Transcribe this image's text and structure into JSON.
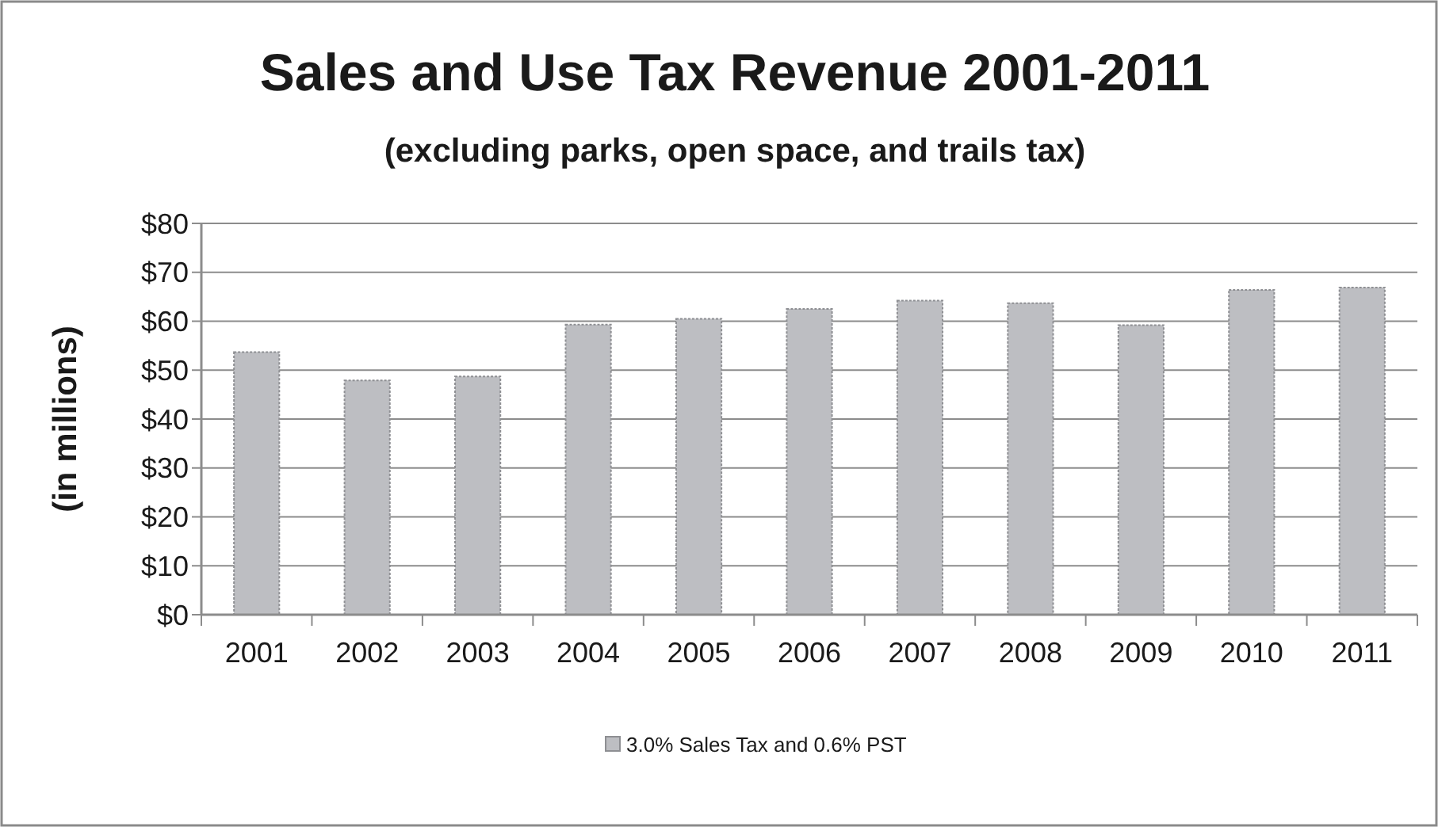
{
  "chart_data": {
    "type": "bar",
    "title": "Sales and Use Tax Revenue 2001-2011",
    "subtitle": "(excluding parks, open space, and trails tax)",
    "ylabel": "(in millions)",
    "categories": [
      "2001",
      "2002",
      "2003",
      "2004",
      "2005",
      "2006",
      "2007",
      "2008",
      "2009",
      "2010",
      "2011"
    ],
    "series": [
      {
        "name": "3.0% Sales Tax and 0.6% PST",
        "color": "#bdbec2",
        "values": [
          53.7,
          47.9,
          48.7,
          59.3,
          60.5,
          62.5,
          64.2,
          63.7,
          59.2,
          66.4,
          66.9
        ]
      }
    ],
    "ylim": [
      0,
      80
    ],
    "yticks": [
      {
        "value": 0,
        "label": "$0"
      },
      {
        "value": 10,
        "label": "$10"
      },
      {
        "value": 20,
        "label": "$20"
      },
      {
        "value": 30,
        "label": "$30"
      },
      {
        "value": 40,
        "label": "$40"
      },
      {
        "value": 50,
        "label": "$50"
      },
      {
        "value": 60,
        "label": "$60"
      },
      {
        "value": 70,
        "label": "$70"
      },
      {
        "value": 80,
        "label": "$80"
      }
    ],
    "grid": "y",
    "legend": "bottom"
  }
}
